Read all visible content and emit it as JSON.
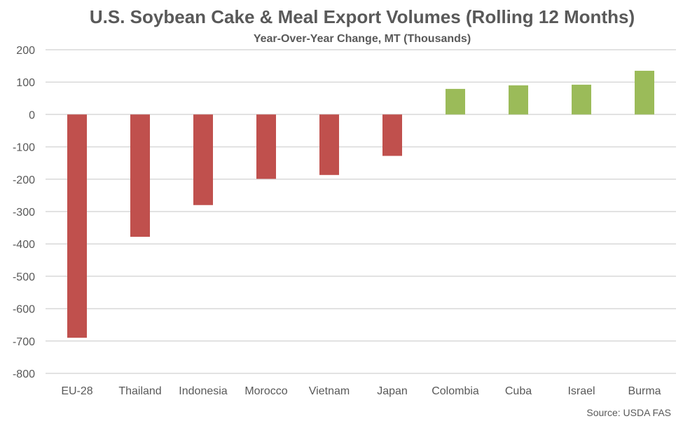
{
  "chart_data": {
    "type": "bar",
    "title": "U.S. Soybean Cake & Meal Export Volumes (Rolling 12 Months)",
    "subtitle": "Year-Over-Year Change, MT (Thousands)",
    "xlabel": "",
    "ylabel": "",
    "categories": [
      "EU-28",
      "Thailand",
      "Indonesia",
      "Morocco",
      "Vietnam",
      "Japan",
      "Colombia",
      "Cuba",
      "Israel",
      "Burma"
    ],
    "values": [
      -690,
      -378,
      -280,
      -199,
      -187,
      -128,
      79,
      90,
      92,
      135
    ],
    "ylim": [
      -800,
      200
    ],
    "yticks": [
      200,
      100,
      0,
      -100,
      -200,
      -300,
      -400,
      -500,
      -600,
      -700,
      -800
    ],
    "grid": true,
    "legend": "none",
    "colors": {
      "negative": "#c0504d",
      "positive": "#9bbb59",
      "grid": "#d9d9d9",
      "text": "#595959"
    },
    "source": "Source: USDA FAS"
  }
}
